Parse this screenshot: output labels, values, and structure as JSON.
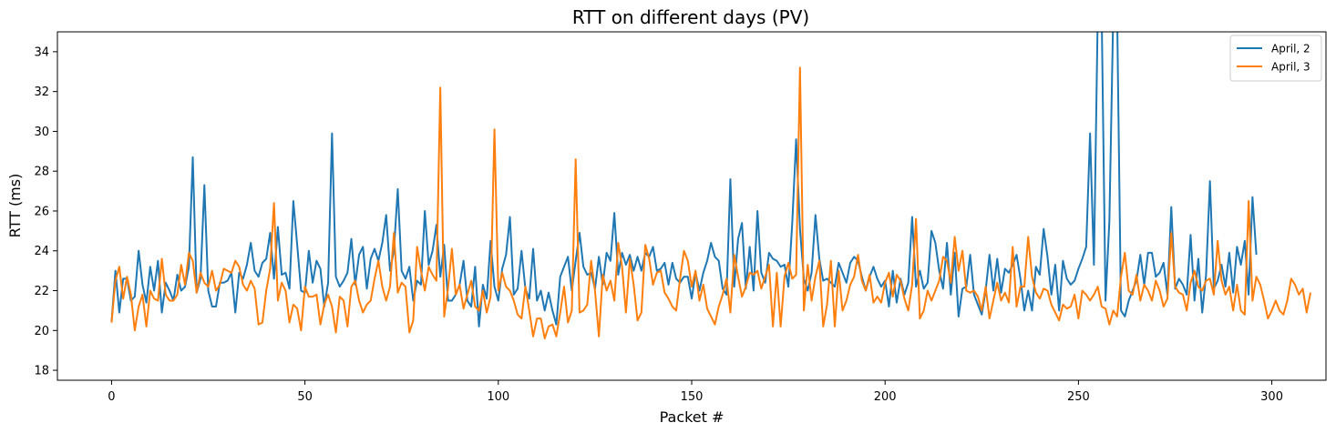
{
  "chart_data": {
    "type": "line",
    "title": "RTT on different days (PV)",
    "xlabel": "Packet #",
    "ylabel": "RTT (ms)",
    "xlim": [
      -14,
      314
    ],
    "ylim": [
      17.5,
      35
    ],
    "xticks": [
      0,
      50,
      100,
      150,
      200,
      250,
      300
    ],
    "yticks": [
      18,
      20,
      22,
      24,
      26,
      28,
      30,
      32,
      34
    ],
    "grid": false,
    "legend_position": "top-right",
    "series": [
      {
        "name": "April, 2",
        "color": "#1f77b4",
        "x_start": 0,
        "values": [
          20.4,
          23.0,
          20.9,
          22.6,
          22.6,
          21.5,
          21.7,
          24.0,
          22.3,
          21.4,
          23.2,
          22.0,
          23.5,
          20.9,
          22.4,
          22.0,
          21.5,
          22.8,
          22.0,
          22.2,
          23.2,
          28.7,
          21.9,
          22.6,
          27.3,
          22.0,
          21.2,
          21.2,
          22.4,
          22.4,
          22.5,
          22.9,
          20.9,
          22.9,
          22.6,
          23.3,
          24.4,
          23.0,
          22.7,
          23.4,
          23.6,
          24.9,
          22.6,
          25.2,
          22.8,
          22.9,
          22.1,
          26.5,
          24.3,
          22.0,
          21.9,
          24.0,
          22.4,
          23.5,
          23.1,
          21.2,
          22.4,
          29.9,
          22.7,
          22.2,
          22.5,
          22.9,
          24.6,
          22.3,
          23.8,
          24.2,
          22.1,
          23.6,
          24.1,
          23.5,
          24.4,
          25.8,
          23.0,
          24.0,
          27.1,
          23.0,
          22.6,
          23.2,
          21.5,
          22.5,
          22.3,
          26.0,
          23.3,
          24.0,
          25.3,
          22.7,
          24.3,
          21.5,
          21.5,
          21.8,
          22.3,
          23.5,
          21.5,
          21.2,
          23.2,
          20.2,
          22.3,
          21.6,
          24.5,
          22.2,
          21.5,
          23.1,
          23.8,
          25.7,
          21.8,
          22.1,
          24.0,
          22.1,
          21.6,
          24.1,
          21.5,
          22.0,
          21.0,
          21.9,
          21.0,
          20.3,
          22.7,
          23.2,
          23.7,
          22.0,
          23.5,
          24.9,
          23.2,
          22.8,
          22.9,
          22.1,
          23.7,
          22.3,
          23.9,
          23.5,
          25.9,
          22.8,
          23.9,
          23.3,
          23.8,
          23.0,
          23.7,
          23.0,
          23.9,
          23.7,
          24.2,
          23.0,
          23.1,
          23.4,
          22.3,
          23.4,
          22.6,
          22.4,
          22.7,
          22.7,
          21.6,
          22.9,
          22.0,
          22.9,
          23.5,
          24.4,
          23.7,
          23.5,
          22.1,
          21.8,
          27.6,
          22.2,
          24.6,
          25.4,
          22.1,
          24.2,
          22.0,
          26.0,
          22.9,
          22.4,
          23.9,
          23.6,
          23.5,
          23.2,
          23.3,
          22.2,
          25.4,
          29.6,
          25.1,
          22.6,
          22.0,
          22.9,
          25.8,
          23.6,
          22.5,
          22.6,
          22.4,
          22.2,
          23.4,
          22.9,
          22.4,
          23.4,
          23.7,
          23.5,
          22.7,
          22.0,
          22.7,
          23.2,
          22.6,
          22.2,
          22.5,
          21.2,
          23.0,
          21.4,
          22.6,
          21.8,
          22.4,
          25.7,
          22.2,
          23.0,
          22.1,
          22.4,
          25.0,
          24.4,
          23.0,
          22.1,
          24.4,
          21.8,
          23.9,
          20.7,
          22.1,
          22.2,
          23.8,
          21.8,
          21.3,
          20.8,
          22.0,
          23.8,
          22.0,
          23.6,
          21.9,
          23.1,
          22.9,
          23.3,
          23.8,
          22.6,
          21.0,
          22.0,
          21.0,
          23.2,
          22.8,
          25.1,
          23.7,
          21.8,
          23.3,
          21.0,
          23.5,
          22.6,
          22.3,
          22.5,
          23.1,
          23.6,
          24.2,
          29.9,
          23.3,
          36.0,
          36.0,
          21.5,
          25.5,
          36.0,
          36.0,
          21.0,
          20.7,
          21.5,
          22.0,
          22.5,
          23.8,
          22.3,
          23.9,
          23.9,
          22.7,
          22.9,
          23.4,
          21.8,
          26.2,
          22.1,
          22.6,
          22.3,
          21.8,
          24.8,
          21.5,
          23.6,
          20.9,
          22.8,
          27.5,
          22.1,
          22.5,
          23.3,
          22.2,
          23.9,
          21.9,
          24.2,
          23.3,
          24.5,
          21.8,
          26.7,
          23.8
        ]
      },
      {
        "name": "April, 3",
        "color": "#ff7f0e",
        "x_start": 0,
        "values": [
          20.4,
          22.5,
          23.2,
          21.6,
          22.7,
          21.8,
          20.0,
          21.2,
          21.8,
          20.2,
          22.0,
          21.6,
          21.5,
          23.6,
          21.8,
          21.5,
          21.5,
          21.8,
          23.3,
          22.3,
          23.9,
          23.5,
          21.9,
          22.9,
          22.4,
          22.2,
          23.0,
          22.0,
          22.3,
          23.1,
          23.0,
          22.9,
          23.5,
          23.2,
          22.3,
          22.0,
          22.5,
          22.1,
          20.3,
          20.4,
          22.0,
          23.1,
          26.4,
          21.5,
          22.4,
          22.0,
          20.4,
          21.3,
          21.1,
          20.0,
          22.2,
          21.7,
          21.7,
          21.8,
          20.3,
          21.3,
          21.8,
          21.2,
          19.9,
          21.7,
          21.5,
          20.2,
          22.2,
          22.5,
          21.5,
          20.9,
          21.3,
          21.5,
          22.6,
          23.5,
          22.2,
          21.5,
          22.2,
          24.9,
          21.9,
          22.4,
          22.2,
          19.9,
          20.5,
          24.2,
          23.0,
          22.0,
          23.2,
          22.8,
          22.5,
          32.2,
          20.7,
          22.1,
          24.1,
          21.8,
          22.3,
          21.1,
          21.8,
          22.5,
          21.2,
          21.0,
          22.0,
          20.9,
          21.7,
          30.1,
          22.0,
          22.9,
          22.2,
          22.0,
          21.5,
          20.8,
          20.6,
          22.2,
          21.0,
          19.7,
          20.6,
          20.6,
          19.6,
          20.2,
          20.3,
          19.7,
          20.9,
          22.2,
          20.4,
          21.0,
          28.6,
          20.9,
          21.0,
          21.3,
          23.5,
          22.0,
          19.7,
          22.8,
          22.0,
          22.5,
          21.5,
          24.4,
          23.2,
          20.9,
          23.6,
          22.3,
          20.5,
          20.9,
          24.3,
          23.6,
          22.3,
          22.9,
          23.0,
          21.9,
          21.6,
          21.2,
          21.0,
          22.6,
          24.0,
          23.5,
          22.2,
          23.0,
          21.5,
          22.3,
          21.1,
          20.7,
          20.3,
          21.2,
          21.8,
          22.6,
          20.9,
          23.8,
          22.7,
          21.7,
          22.2,
          22.9,
          22.8,
          23.0,
          22.1,
          22.7,
          23.3,
          20.2,
          22.9,
          20.2,
          22.7,
          23.4,
          22.6,
          22.8,
          33.2,
          21.0,
          23.3,
          21.5,
          22.7,
          23.5,
          20.2,
          21.3,
          23.5,
          20.2,
          23.0,
          21.0,
          21.5,
          22.3,
          22.7,
          23.8,
          22.5,
          22.0,
          22.8,
          21.4,
          21.7,
          21.4,
          22.4,
          22.9,
          21.7,
          22.8,
          22.5,
          21.6,
          21.0,
          22.3,
          25.6,
          20.6,
          21.0,
          22.0,
          21.5,
          22.0,
          22.5,
          23.7,
          23.5,
          22.4,
          24.7,
          23.0,
          24.0,
          22.0,
          21.9,
          22.0,
          21.7,
          21.0,
          22.2,
          20.6,
          21.5,
          22.4,
          21.5,
          21.9,
          21.4,
          24.2,
          21.2,
          22.2,
          22.2,
          24.7,
          22.7,
          21.9,
          21.6,
          22.1,
          22.0,
          21.3,
          20.9,
          20.5,
          21.3,
          21.1,
          21.2,
          21.8,
          20.6,
          22.0,
          21.8,
          21.5,
          21.8,
          22.2,
          21.2,
          21.1,
          20.3,
          21.0,
          20.7,
          22.7,
          23.9,
          22.0,
          21.8,
          22.8,
          21.5,
          22.3,
          22.0,
          21.5,
          22.5,
          22.0,
          21.2,
          21.6,
          24.9,
          22.2,
          21.9,
          21.8,
          21.0,
          22.4,
          23.0,
          22.2,
          22.0,
          22.5,
          22.6,
          21.8,
          24.5,
          22.5,
          21.8,
          22.2,
          21.0,
          22.3,
          21.0,
          20.8,
          26.5,
          21.5,
          22.7,
          22.3,
          21.5,
          20.6,
          21.0,
          21.5,
          21.0,
          20.8,
          21.5,
          22.6,
          22.3,
          21.8,
          22.1,
          20.9,
          21.9
        ]
      }
    ]
  }
}
